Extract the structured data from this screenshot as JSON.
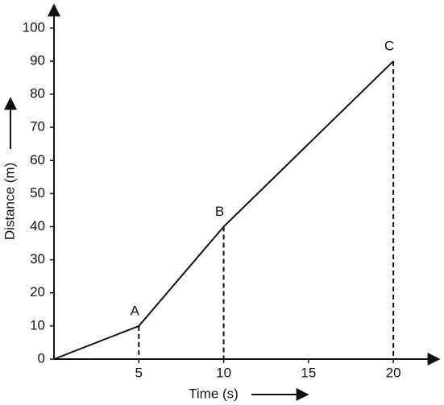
{
  "chart_data": {
    "type": "line",
    "x": [
      0,
      5,
      10,
      20
    ],
    "values": [
      0,
      10,
      40,
      90
    ],
    "point_labels": [
      null,
      "A",
      "B",
      "C"
    ],
    "x_label": "Time (s)",
    "y_label": "Distance (m)",
    "xlim": [
      0,
      22.7
    ],
    "ylim": [
      0,
      107
    ],
    "xticks": [
      5,
      10,
      15,
      20
    ],
    "yticks": [
      0,
      10,
      20,
      30,
      40,
      50,
      60,
      70,
      80,
      90,
      100
    ],
    "color": "#111"
  }
}
